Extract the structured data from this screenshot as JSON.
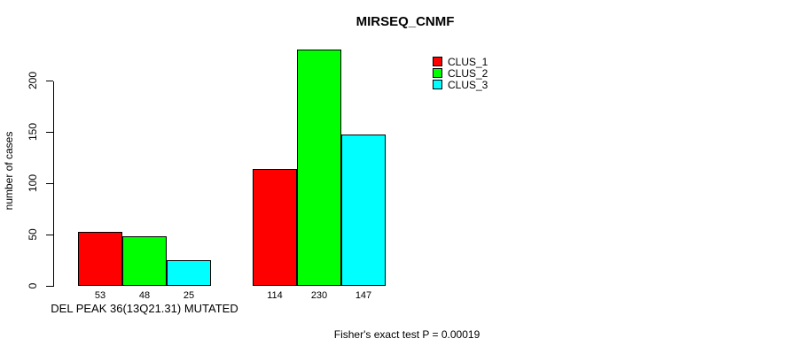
{
  "chart_data": {
    "type": "bar",
    "title": "MIRSEQ_CNMF",
    "xlabel": "DEL PEAK 36(13Q21.31) MUTATED",
    "ylabel": "number of cases",
    "ylim": [
      0,
      230
    ],
    "yticks": [
      0,
      50,
      100,
      150,
      200
    ],
    "grid": false,
    "legend_position": "top-right",
    "groups": [
      "group-1",
      "group-2"
    ],
    "series": [
      {
        "name": "CLUS_1",
        "color": "#ff0000",
        "values": [
          53,
          114
        ]
      },
      {
        "name": "CLUS_2",
        "color": "#00ff00",
        "values": [
          48,
          230
        ]
      },
      {
        "name": "CLUS_3",
        "color": "#00ffff",
        "values": [
          25,
          147
        ]
      }
    ],
    "bar_value_labels": [
      53,
      48,
      25,
      114,
      230,
      147
    ],
    "annotation": "Fisher's exact test P = 0.00019"
  },
  "legend": {
    "items": [
      {
        "label": "CLUS_1",
        "color": "#ff0000"
      },
      {
        "label": "CLUS_2",
        "color": "#00ff00"
      },
      {
        "label": "CLUS_3",
        "color": "#00ffff"
      }
    ]
  }
}
